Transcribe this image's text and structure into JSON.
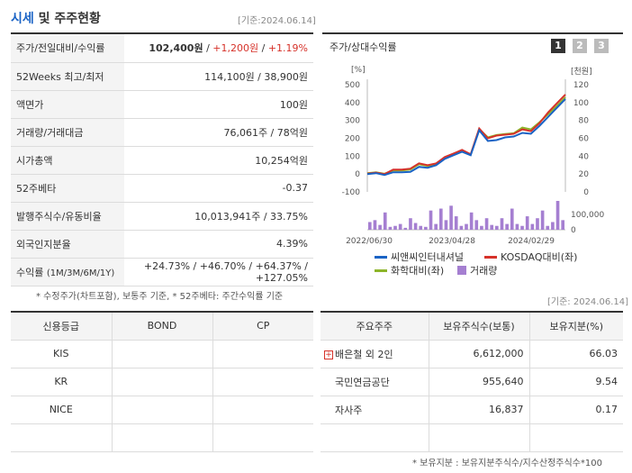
{
  "header": {
    "title_blue": "시세",
    "title_rest": " 및 주주현황",
    "base_date": "[기준:2024.06.14]"
  },
  "price_table": {
    "rows": [
      {
        "label": "주가/전일대비/수익률",
        "price": "102,400원",
        "sep1": " / ",
        "change": "+1,200원",
        "sep2": " / ",
        "rate": "+1.19%"
      },
      {
        "label": "52Weeks 최고/최저",
        "value": "114,100원 / 38,900원"
      },
      {
        "label": "액면가",
        "value": "100원"
      },
      {
        "label": "거래량/거래대금",
        "value": "76,061주 / 78억원"
      },
      {
        "label": "시가총액",
        "value": "10,254억원"
      },
      {
        "label": "52주베타",
        "value": "-0.37"
      },
      {
        "label": "발행주식수/유동비율",
        "value": "10,013,941주 / 33.75%"
      },
      {
        "label": "외국인지분율",
        "value": "4.39%"
      },
      {
        "label": "수익률",
        "label_sub": "(1M/3M/6M/1Y)",
        "r1": "+24.73%",
        "r2": "+46.70%",
        "r3": "+64.37%",
        "r4": "+127.05%"
      }
    ],
    "note": "* 수정주가(차트포함), 보통주 기준, * 52주베타: 주간수익률 기준"
  },
  "chart_panel": {
    "title": "주가/상대수익률",
    "pages": [
      "1",
      "2",
      "3"
    ]
  },
  "chart_data": {
    "type": "line",
    "left_axis_unit": "[%]",
    "right_axis_unit": "[천원]",
    "left_ticks": [
      500,
      400,
      300,
      200,
      100,
      0,
      -100
    ],
    "right_ticks": [
      120,
      100,
      80,
      60,
      40,
      20,
      0
    ],
    "volume_ticks": [
      "100,000",
      "0"
    ],
    "x_labels": [
      "2022/06/30",
      "2023/04/28",
      "2024/02/29"
    ],
    "series": [
      {
        "name": "씨앤씨인터내셔널",
        "color": "#1a63c5",
        "values": [
          0,
          5,
          -5,
          10,
          10,
          12,
          40,
          35,
          50,
          85,
          105,
          125,
          105,
          245,
          185,
          190,
          205,
          210,
          230,
          225,
          270,
          320,
          370,
          420
        ]
      },
      {
        "name": "KOSDAQ대비(좌)",
        "color": "#d6322a",
        "values": [
          2,
          8,
          0,
          25,
          25,
          30,
          60,
          50,
          60,
          95,
          115,
          135,
          110,
          255,
          200,
          215,
          220,
          225,
          250,
          240,
          285,
          345,
          395,
          445
        ]
      },
      {
        "name": "화학대비(좌)",
        "color": "#8db52a",
        "values": [
          5,
          10,
          2,
          20,
          20,
          25,
          55,
          45,
          55,
          90,
          108,
          128,
          108,
          252,
          205,
          218,
          224,
          228,
          260,
          250,
          290,
          335,
          380,
          430
        ]
      }
    ],
    "volume": {
      "name": "거래량",
      "color": "#a57fd1",
      "values": [
        8,
        10,
        5,
        18,
        3,
        4,
        6,
        2,
        12,
        7,
        4,
        3,
        20,
        6,
        22,
        10,
        25,
        14,
        4,
        6,
        18,
        10,
        4,
        12,
        5,
        4,
        12,
        6,
        22,
        6,
        4,
        14,
        6,
        12,
        20,
        4,
        8,
        30,
        10
      ]
    }
  },
  "base_date2": "[기준: 2024.06.14]",
  "credit_table": {
    "headers": [
      "신용등급",
      "BOND",
      "CP"
    ],
    "rows": [
      [
        "KIS",
        "",
        ""
      ],
      [
        "KR",
        "",
        ""
      ],
      [
        "NICE",
        "",
        ""
      ],
      [
        "",
        "",
        ""
      ]
    ]
  },
  "holders_table": {
    "headers": [
      "주요주주",
      "보유주식수(보통)",
      "보유지분(%)"
    ],
    "rows": [
      {
        "name": "배은철 외 2인",
        "shares": "6,612,000",
        "pct": "66.03",
        "expand": "+"
      },
      {
        "name": "국민연금공단",
        "shares": "955,640",
        "pct": "9.54"
      },
      {
        "name": "자사주",
        "shares": "16,837",
        "pct": "0.17"
      }
    ],
    "note": "* 보유지분 : 보유지분주식수/지수산정주식수*100"
  }
}
